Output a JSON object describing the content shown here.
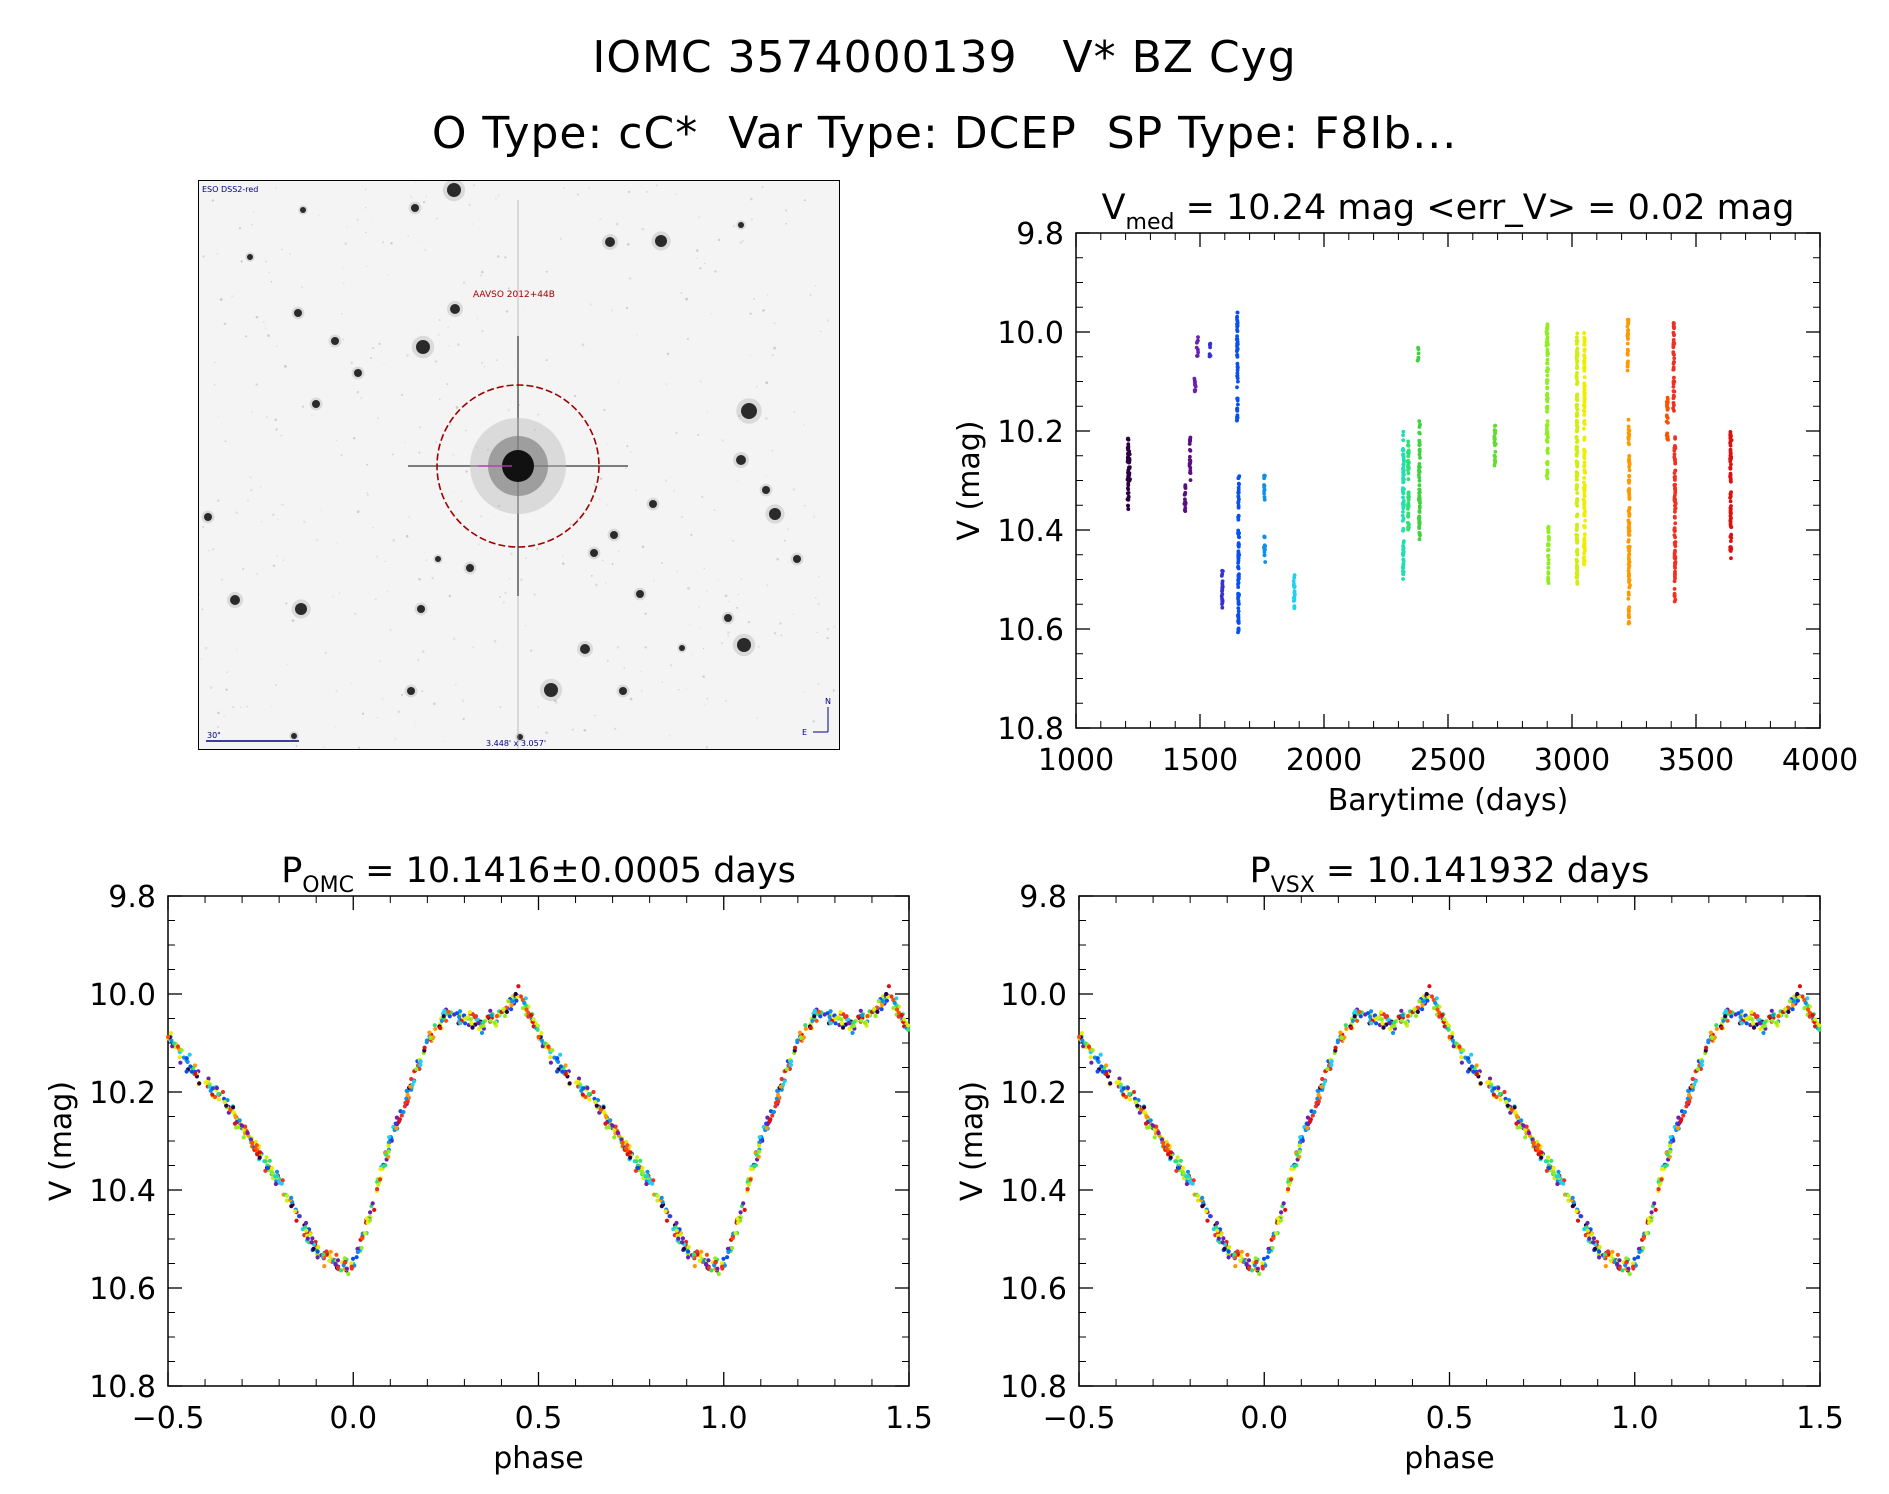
{
  "header": {
    "line1": "IOMC 3574000139   V* BZ Cyg",
    "line2": "O Type: cC*  Var Type: DCEP  SP Type: F8Ib..."
  },
  "finder_chart": {
    "source_label": "ESO DSS2-red",
    "target_label": "AAVSO 2012+44B",
    "scale_label": "30\"",
    "fov_label": "3.448' x 3.057'",
    "north_label": "N",
    "east_label": "E",
    "circle_color": "#a00000",
    "label_color": "#000080"
  },
  "chart_data": [
    {
      "type": "scatter",
      "id": "lightcurve",
      "title": {
        "main": "V",
        "sub": "med",
        "rest": " = 10.24 mag <err_V> = 0.02 mag"
      },
      "xlabel": "Barytime (days)",
      "ylabel": "V (mag)",
      "xlim": [
        1000,
        4000
      ],
      "ylim": [
        10.8,
        9.8
      ],
      "xticks": [
        1000,
        1500,
        2000,
        2500,
        3000,
        3500,
        4000
      ],
      "yticks": [
        9.8,
        10.0,
        10.2,
        10.4,
        10.6,
        10.8
      ],
      "ytick_labels": [
        "9.8",
        "10.0",
        "10.2",
        "10.4",
        "10.6",
        "10.8"
      ],
      "series": [
        {
          "color": "#2b0040",
          "points": [
            [
              1210,
              10.21
            ],
            [
              1210,
              10.36
            ],
            [
              1215,
              10.24
            ],
            [
              1215,
              10.31
            ]
          ]
        },
        {
          "color": "#5a0f80",
          "points": [
            [
              1440,
              10.3
            ],
            [
              1440,
              10.37
            ],
            [
              1460,
              10.21
            ],
            [
              1460,
              10.3
            ]
          ]
        },
        {
          "color": "#6a20b0",
          "points": [
            [
              1480,
              10.08
            ],
            [
              1480,
              10.12
            ],
            [
              1490,
              10.01
            ],
            [
              1490,
              10.05
            ]
          ]
        },
        {
          "color": "#3a30d0",
          "points": [
            [
              1540,
              10.02
            ],
            [
              1540,
              10.05
            ],
            [
              1590,
              10.48
            ],
            [
              1590,
              10.56
            ]
          ]
        },
        {
          "color": "#0a50f0",
          "points": [
            [
              1650,
              9.96
            ],
            [
              1650,
              10.18
            ],
            [
              1655,
              10.29
            ],
            [
              1655,
              10.61
            ]
          ]
        },
        {
          "color": "#1090e8",
          "points": [
            [
              1760,
              10.29
            ],
            [
              1760,
              10.34
            ],
            [
              1760,
              10.41
            ],
            [
              1760,
              10.47
            ]
          ]
        },
        {
          "color": "#20d0ee",
          "points": [
            [
              1880,
              10.49
            ],
            [
              1880,
              10.56
            ]
          ]
        },
        {
          "color": "#20e0b0",
          "points": [
            [
              2320,
              10.2
            ],
            [
              2320,
              10.5
            ]
          ]
        },
        {
          "color": "#30e070",
          "points": [
            [
              2340,
              10.22
            ],
            [
              2340,
              10.4
            ]
          ]
        },
        {
          "color": "#40d040",
          "points": [
            [
              2380,
              10.03
            ],
            [
              2380,
              10.06
            ],
            [
              2385,
              10.18
            ],
            [
              2385,
              10.42
            ]
          ]
        },
        {
          "color": "#60dd30",
          "points": [
            [
              2690,
              10.18
            ],
            [
              2690,
              10.27
            ]
          ]
        },
        {
          "color": "#90ee20",
          "points": [
            [
              2900,
              9.98
            ],
            [
              2900,
              10.3
            ],
            [
              2905,
              10.39
            ],
            [
              2905,
              10.51
            ]
          ]
        },
        {
          "color": "#d0ee10",
          "points": [
            [
              3020,
              10.0
            ],
            [
              3020,
              10.51
            ]
          ]
        },
        {
          "color": "#f0ee00",
          "points": [
            [
              3050,
              10.0
            ],
            [
              3050,
              10.47
            ]
          ]
        },
        {
          "color": "#ff9900",
          "points": [
            [
              3225,
              9.97
            ],
            [
              3225,
              10.08
            ],
            [
              3230,
              10.17
            ],
            [
              3230,
              10.59
            ]
          ]
        },
        {
          "color": "#ff5000",
          "points": [
            [
              3385,
              10.13
            ],
            [
              3385,
              10.22
            ]
          ]
        },
        {
          "color": "#f03020",
          "points": [
            [
              3410,
              9.98
            ],
            [
              3410,
              10.16
            ],
            [
              3415,
              10.21
            ],
            [
              3415,
              10.55
            ]
          ]
        },
        {
          "color": "#dd1010",
          "points": [
            [
              3640,
              10.2
            ],
            [
              3640,
              10.46
            ]
          ]
        }
      ]
    },
    {
      "type": "scatter",
      "id": "phase_omc",
      "title": {
        "main": "P",
        "sub": "OMC",
        "rest": " = 10.1416±0.0005 days"
      },
      "xlabel": "phase",
      "ylabel": "V (mag)",
      "xlim": [
        -0.5,
        1.5
      ],
      "ylim": [
        10.8,
        9.8
      ],
      "xticks": [
        -0.5,
        0.0,
        0.5,
        1.0,
        1.5
      ],
      "xtick_labels": [
        "−0.5",
        "0.0",
        "0.5",
        "1.0",
        "1.5"
      ],
      "yticks": [
        9.8,
        10.0,
        10.2,
        10.4,
        10.6,
        10.8
      ],
      "ytick_labels": [
        "9.8",
        "10.0",
        "10.2",
        "10.4",
        "10.6",
        "10.8"
      ],
      "curve": [
        [
          0.0,
          10.56
        ],
        [
          0.05,
          10.44
        ],
        [
          0.1,
          10.3
        ],
        [
          0.15,
          10.2
        ],
        [
          0.2,
          10.1
        ],
        [
          0.25,
          10.04
        ],
        [
          0.3,
          10.05
        ],
        [
          0.35,
          10.06
        ],
        [
          0.4,
          10.04
        ],
        [
          0.45,
          10.0
        ],
        [
          0.5,
          10.08
        ],
        [
          0.55,
          10.14
        ],
        [
          0.6,
          10.18
        ],
        [
          0.65,
          10.22
        ],
        [
          0.7,
          10.27
        ],
        [
          0.75,
          10.33
        ],
        [
          0.8,
          10.38
        ],
        [
          0.85,
          10.45
        ],
        [
          0.9,
          10.52
        ],
        [
          0.95,
          10.55
        ],
        [
          1.0,
          10.56
        ]
      ],
      "period_days": 10.1416
    },
    {
      "type": "scatter",
      "id": "phase_vsx",
      "title": {
        "main": "P",
        "sub": "VSX",
        "rest": " = 10.141932 days"
      },
      "xlabel": "phase",
      "ylabel": "V (mag)",
      "xlim": [
        -0.5,
        1.5
      ],
      "ylim": [
        10.8,
        9.8
      ],
      "xticks": [
        -0.5,
        0.0,
        0.5,
        1.0,
        1.5
      ],
      "xtick_labels": [
        "−0.5",
        "0.0",
        "0.5",
        "1.0",
        "1.5"
      ],
      "yticks": [
        9.8,
        10.0,
        10.2,
        10.4,
        10.6,
        10.8
      ],
      "ytick_labels": [
        "9.8",
        "10.0",
        "10.2",
        "10.4",
        "10.6",
        "10.8"
      ],
      "curve": [
        [
          0.0,
          10.56
        ],
        [
          0.05,
          10.44
        ],
        [
          0.1,
          10.3
        ],
        [
          0.15,
          10.2
        ],
        [
          0.2,
          10.1
        ],
        [
          0.25,
          10.04
        ],
        [
          0.3,
          10.05
        ],
        [
          0.35,
          10.06
        ],
        [
          0.4,
          10.04
        ],
        [
          0.45,
          10.0
        ],
        [
          0.5,
          10.08
        ],
        [
          0.55,
          10.14
        ],
        [
          0.6,
          10.18
        ],
        [
          0.65,
          10.22
        ],
        [
          0.7,
          10.27
        ],
        [
          0.75,
          10.33
        ],
        [
          0.8,
          10.38
        ],
        [
          0.85,
          10.45
        ],
        [
          0.9,
          10.52
        ],
        [
          0.95,
          10.55
        ],
        [
          1.0,
          10.56
        ]
      ],
      "period_days": 10.141932
    }
  ],
  "point_palette": [
    "#2b0040",
    "#6a20b0",
    "#0a50f0",
    "#1090e8",
    "#20d0ee",
    "#30e070",
    "#90ee20",
    "#d0ee10",
    "#f0ee00",
    "#ff9900",
    "#ff5000",
    "#f03020",
    "#dd1010"
  ]
}
